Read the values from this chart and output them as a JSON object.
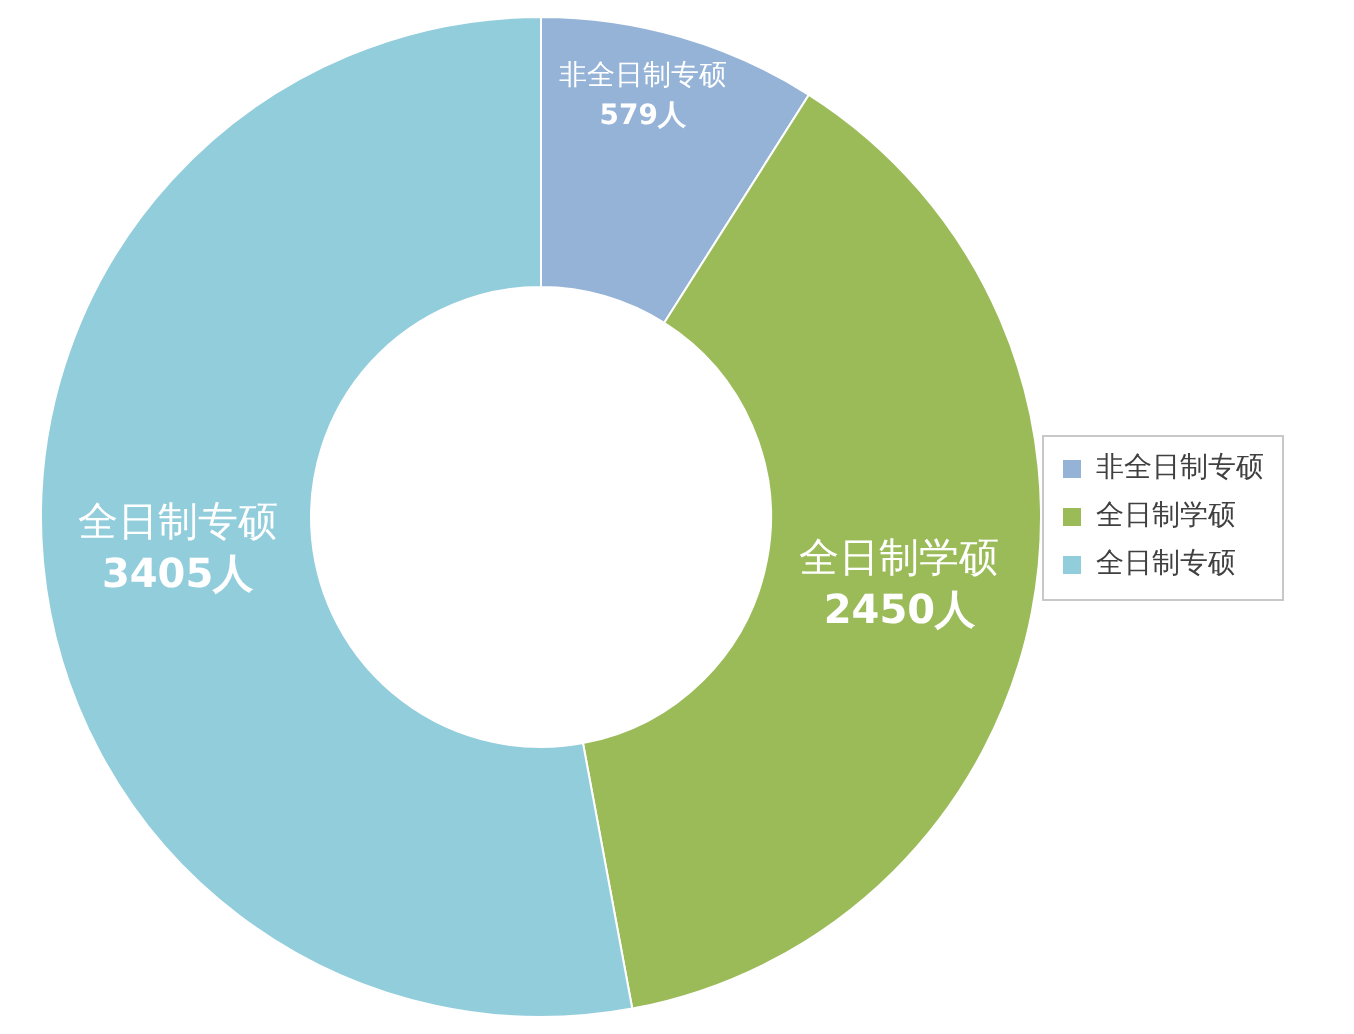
{
  "chart_data": {
    "type": "donut",
    "categories": [
      "非全日制专硕",
      "全日制学硕",
      "全日制专硕"
    ],
    "values": [
      579,
      2450,
      3405
    ],
    "value_labels": [
      "579人",
      "2450人",
      "3405人"
    ],
    "colors": [
      "#95b3d7",
      "#9bbb59",
      "#92cddc"
    ],
    "legend": "right"
  }
}
